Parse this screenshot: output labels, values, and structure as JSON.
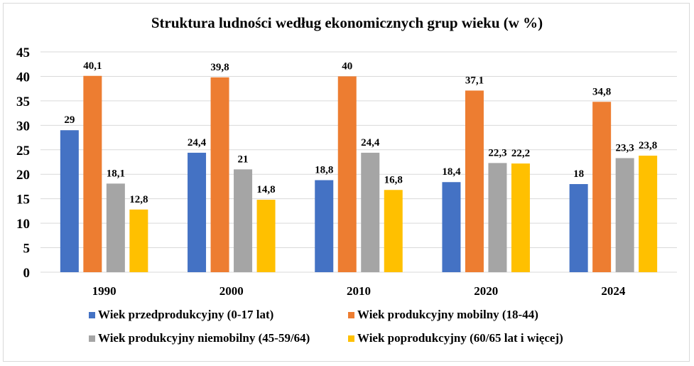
{
  "chart_data": {
    "type": "bar",
    "title": "Struktura ludności według ekonomicznych grup wieku (w %)",
    "categories": [
      "1990",
      "2000",
      "2010",
      "2020",
      "2024"
    ],
    "series": [
      {
        "name": "Wiek przedprodukcyjny (0-17 lat)",
        "color": "#4472c4",
        "values": [
          29,
          24.4,
          18.8,
          18.4,
          18
        ],
        "labels": [
          "29",
          "24,4",
          "18,8",
          "18,4",
          "18"
        ]
      },
      {
        "name": "Wiek produkcyjny mobilny (18-44)",
        "color": "#ed7d31",
        "values": [
          40.1,
          39.8,
          40,
          37.1,
          34.8
        ],
        "labels": [
          "40,1",
          "39,8",
          "40",
          "37,1",
          "34,8"
        ]
      },
      {
        "name": "Wiek produkcyjny niemobilny (45-59/64)",
        "color": "#a5a5a5",
        "values": [
          18.1,
          21,
          24.4,
          22.3,
          23.3
        ],
        "labels": [
          "18,1",
          "21",
          "24,4",
          "22,3",
          "23,3"
        ]
      },
      {
        "name": "Wiek poprodukcyjny (60/65 lat i więcej)",
        "color": "#ffc000",
        "values": [
          12.8,
          14.8,
          16.8,
          22.2,
          23.8
        ],
        "labels": [
          "12,8",
          "14,8",
          "16,8",
          "22,2",
          "23,8"
        ]
      }
    ],
    "ylim": [
      0,
      45
    ],
    "yticks": [
      "0",
      "5",
      "10",
      "15",
      "20",
      "25",
      "30",
      "35",
      "40",
      "45"
    ],
    "grid": true,
    "legend": "bottom"
  }
}
